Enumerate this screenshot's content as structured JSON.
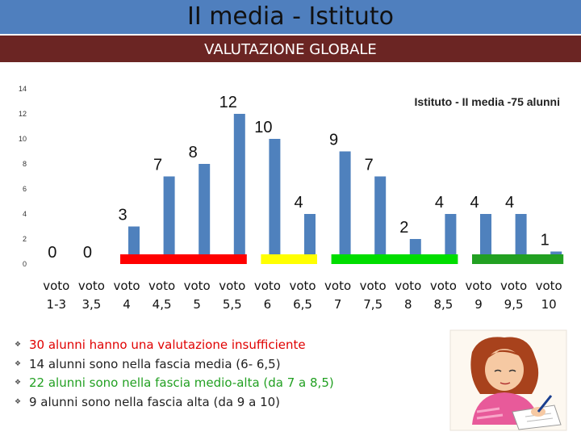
{
  "header": {
    "title": "II media - Istituto",
    "subtitle": "VALUTAZIONE GLOBALE"
  },
  "chart_data": {
    "type": "bar",
    "title": "",
    "legend": "Istituto - II media -75 alunni",
    "categories": [
      "voto 1-3",
      "voto 3,5",
      "voto 4",
      "voto 4,5",
      "voto 5",
      "voto 5,5",
      "voto 6",
      "voto 6,5",
      "voto 7",
      "voto 7,5",
      "voto 8",
      "voto 8,5",
      "voto 9",
      "voto 9,5",
      "voto 10"
    ],
    "series": [
      {
        "name": "Istituto - II media -75 alunni",
        "values": [
          0,
          0,
          3,
          7,
          8,
          12,
          10,
          4,
          9,
          7,
          2,
          4,
          4,
          4,
          1
        ]
      }
    ],
    "ylim": [
      0,
      14
    ],
    "yticks": [
      0,
      2,
      4,
      6,
      8,
      10,
      12,
      14
    ],
    "data_labels": true,
    "grid": false,
    "bar_color": "#4f81bd",
    "bands": [
      {
        "name": "insufficiente",
        "from": "voto 4",
        "to": "voto 5,5",
        "color": "#ff0000"
      },
      {
        "name": "media",
        "from": "voto 6",
        "to": "voto 6,5",
        "color": "#ffff00"
      },
      {
        "name": "medio-alta",
        "from": "voto 7",
        "to": "voto 8,5",
        "color": "#00dd00"
      },
      {
        "name": "alta",
        "from": "voto 9",
        "to": "voto 10",
        "color": "#22a022"
      }
    ]
  },
  "notes": [
    {
      "text": "30  alunni hanno una valutazione insufficiente",
      "color": "#e00000"
    },
    {
      "text": "14 alunni sono nella fascia media (6- 6,5)",
      "color": "#222222"
    },
    {
      "text": "22 alunni sono nella fascia medio-alta (da 7 a 8,5)",
      "color": "#22a022"
    },
    {
      "text": "9 alunni sono nella fascia alta (da 9 a 10)",
      "color": "#222222"
    }
  ]
}
